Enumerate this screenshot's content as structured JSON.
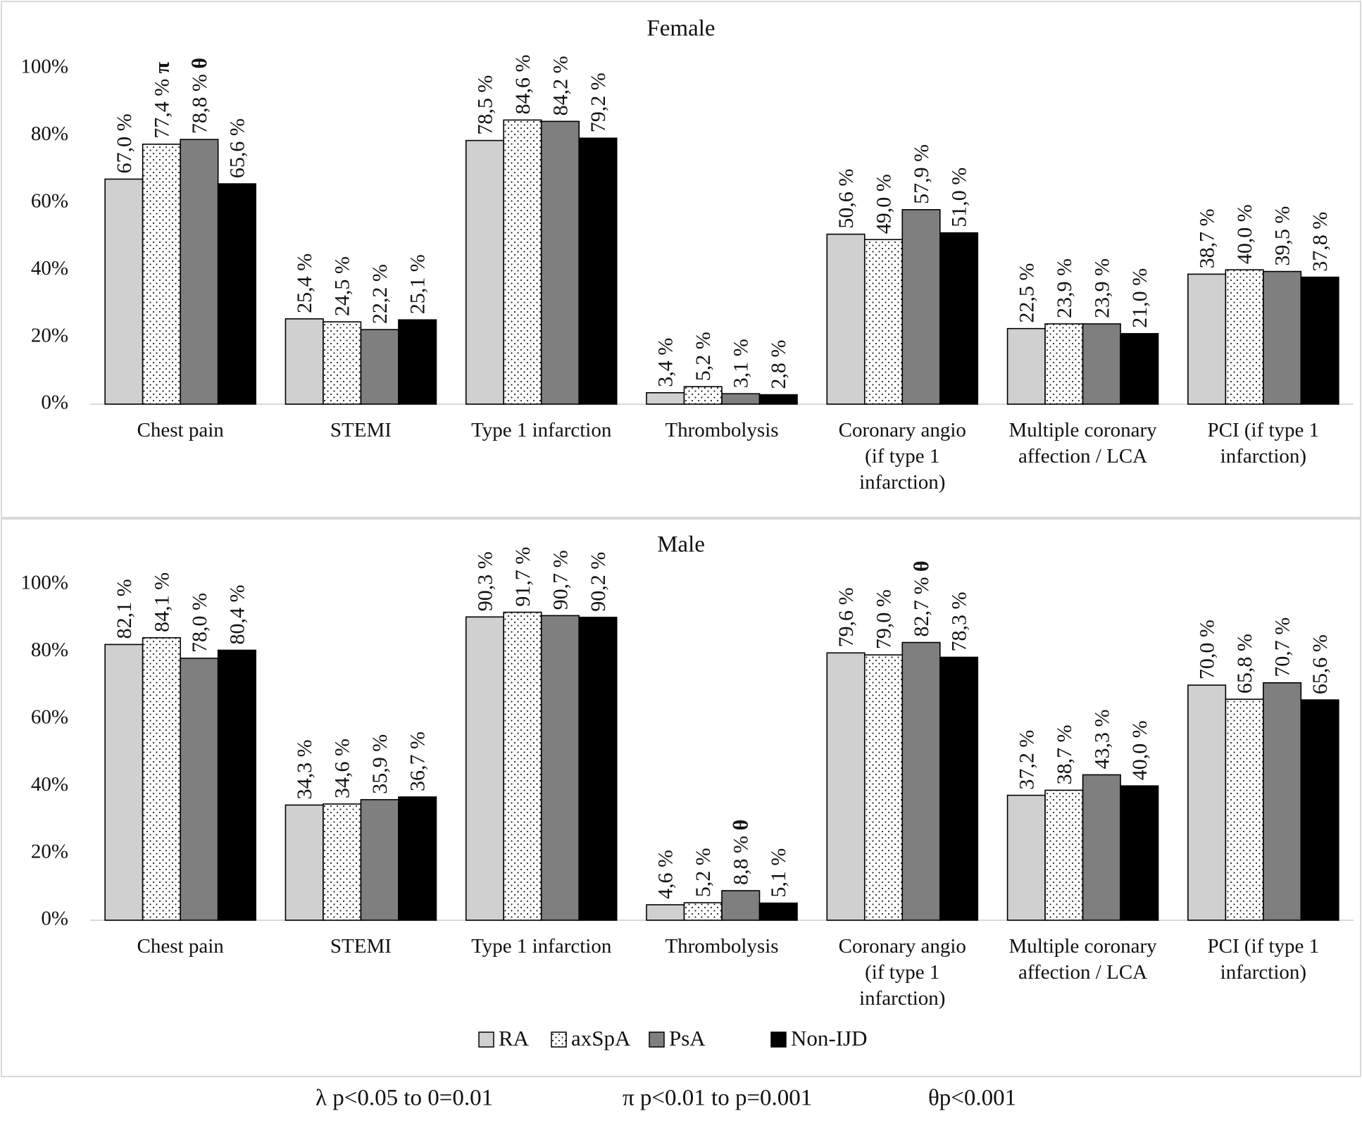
{
  "chart_data": [
    {
      "type": "bar",
      "title": "Female",
      "categories": [
        "Chest pain",
        "STEMI",
        "Type 1 infarction",
        "Thrombolysis",
        "Coronary angio (if type 1 infarction)",
        "Multiple coronary affection / LCA",
        "PCI (if type 1 infarction)"
      ],
      "category_lines": [
        [
          "Chest pain"
        ],
        [
          "STEMI"
        ],
        [
          "Type 1 infarction"
        ],
        [
          "Thrombolysis"
        ],
        [
          "Coronary angio",
          "(if type 1",
          "infarction)"
        ],
        [
          "Multiple coronary",
          "affection / LCA"
        ],
        [
          "PCI (if type 1",
          "infarction)"
        ]
      ],
      "yticks": [
        "0%",
        "20%",
        "40%",
        "60%",
        "80%",
        "100%"
      ],
      "ylim": [
        0,
        100
      ],
      "grid": false,
      "series": [
        {
          "name": "RA",
          "values": [
            67.0,
            25.4,
            78.5,
            3.4,
            50.6,
            22.5,
            38.7
          ],
          "labels": [
            "67,0 %",
            "25,4 %",
            "78,5 %",
            "3,4 %",
            "50,6 %",
            "22,5 %",
            "38,7 %"
          ],
          "markers": [
            "",
            "",
            "",
            "",
            "",
            "",
            ""
          ]
        },
        {
          "name": "axSpA",
          "values": [
            77.4,
            24.5,
            84.6,
            5.2,
            49.0,
            23.9,
            40.0
          ],
          "labels": [
            "77,4 %",
            "24,5 %",
            "84,6 %",
            "5,2 %",
            "49,0 %",
            "23,9 %",
            "40,0 %"
          ],
          "markers": [
            "π",
            "",
            "",
            "",
            "",
            "",
            ""
          ]
        },
        {
          "name": "PsA",
          "values": [
            78.8,
            22.2,
            84.2,
            3.1,
            57.9,
            23.9,
            39.5
          ],
          "labels": [
            "78,8 %",
            "22,2 %",
            "84,2 %",
            "3,1 %",
            "57,9 %",
            "23,9 %",
            "39,5 %"
          ],
          "markers": [
            "θ",
            "",
            "",
            "",
            "",
            "",
            ""
          ]
        },
        {
          "name": "Non-IJD",
          "values": [
            65.6,
            25.1,
            79.2,
            2.8,
            51.0,
            21.0,
            37.8
          ],
          "labels": [
            "65,6 %",
            "25,1 %",
            "79,2 %",
            "2,8 %",
            "51,0 %",
            "21,0 %",
            "37,8 %"
          ],
          "markers": [
            "",
            "",
            "",
            "",
            "",
            "",
            ""
          ]
        }
      ]
    },
    {
      "type": "bar",
      "title": "Male",
      "categories": [
        "Chest pain",
        "STEMI",
        "Type 1 infarction",
        "Thrombolysis",
        "Coronary angio (if type 1 infarction)",
        "Multiple coronary affection / LCA",
        "PCI (if type 1 infarction)"
      ],
      "category_lines": [
        [
          "Chest pain"
        ],
        [
          "STEMI"
        ],
        [
          "Type 1 infarction"
        ],
        [
          "Thrombolysis"
        ],
        [
          "Coronary angio",
          "(if type 1",
          "infarction)"
        ],
        [
          "Multiple coronary",
          "affection / LCA"
        ],
        [
          "PCI (if type 1",
          "infarction)"
        ]
      ],
      "yticks": [
        "0%",
        "20%",
        "40%",
        "60%",
        "80%",
        "100%"
      ],
      "ylim": [
        0,
        100
      ],
      "grid": false,
      "series": [
        {
          "name": "RA",
          "values": [
            82.1,
            34.3,
            90.3,
            4.6,
            79.6,
            37.2,
            70.0
          ],
          "labels": [
            "82,1 %",
            "34,3 %",
            "90,3 %",
            "4,6 %",
            "79,6 %",
            "37,2 %",
            "70,0 %"
          ],
          "markers": [
            "",
            "",
            "",
            "",
            "",
            "",
            ""
          ]
        },
        {
          "name": "axSpA",
          "values": [
            84.1,
            34.6,
            91.7,
            5.2,
            79.0,
            38.7,
            65.8
          ],
          "labels": [
            "84,1 %",
            "34,6 %",
            "91,7 %",
            "5,2 %",
            "79,0 %",
            "38,7 %",
            "65,8 %"
          ],
          "markers": [
            "",
            "",
            "",
            "",
            "",
            "",
            ""
          ]
        },
        {
          "name": "PsA",
          "values": [
            78.0,
            35.9,
            90.7,
            8.8,
            82.7,
            43.3,
            70.7
          ],
          "labels": [
            "78,0 %",
            "35,9 %",
            "90,7 %",
            "8,8 %",
            "82,7 %",
            "43,3 %",
            "70,7 %"
          ],
          "markers": [
            "",
            "",
            "",
            "θ",
            "θ",
            "",
            ""
          ]
        },
        {
          "name": "Non-IJD",
          "values": [
            80.4,
            36.7,
            90.2,
            5.1,
            78.3,
            40.0,
            65.6
          ],
          "labels": [
            "80,4 %",
            "36,7 %",
            "90,2 %",
            "5,1 %",
            "78,3 %",
            "40,0 %",
            "65,6 %"
          ],
          "markers": [
            "",
            "",
            "",
            "",
            "",
            "",
            ""
          ]
        }
      ]
    }
  ],
  "legend": {
    "placement": "bottom",
    "items": [
      {
        "label": "RA",
        "pattern": "light-gray"
      },
      {
        "label": "axSpA",
        "pattern": "dotted"
      },
      {
        "label": "PsA",
        "pattern": "dark-gray"
      },
      {
        "label": "Non-IJD",
        "pattern": "black"
      }
    ]
  },
  "footnotes": [
    "λ p<0.05 to 0=0.01",
    "π p<0.01 to p=0.001",
    "θp<0.001"
  ],
  "colors": {
    "RA": "#d0d0d0",
    "axSpA": "#ffffff",
    "PsA": "#7f7f7f",
    "Non-IJD": "#000000",
    "axis": "#d9d9d9",
    "border": "#d9d9d9"
  }
}
